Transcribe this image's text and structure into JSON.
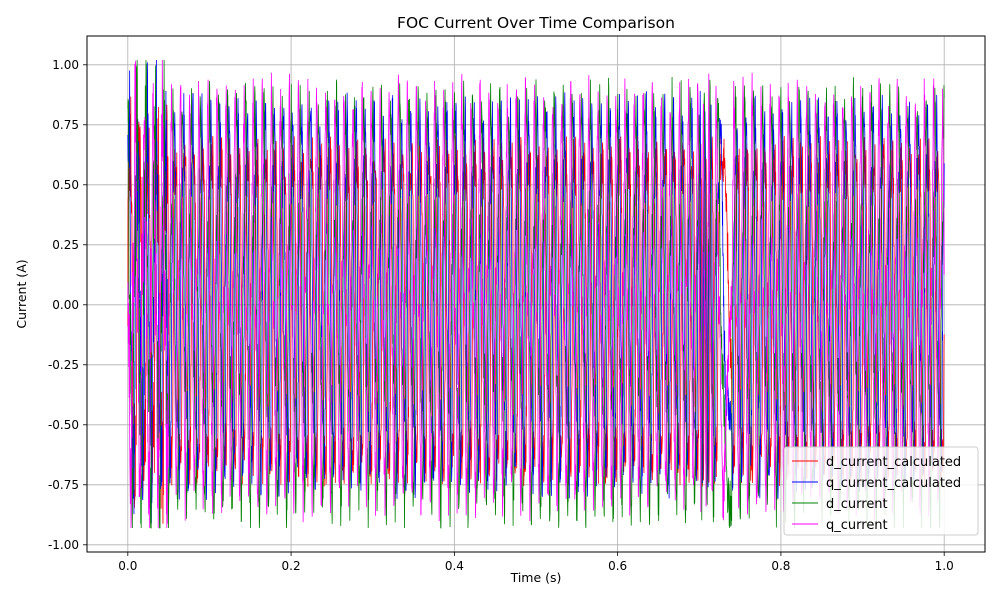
{
  "chart_data": {
    "type": "line",
    "title": "FOC Current Over Time Comparison",
    "xlabel": "Time (s)",
    "ylabel": "Current (A)",
    "xlim": [
      -0.05,
      1.05
    ],
    "ylim": [
      -1.03,
      1.12
    ],
    "xticks": [
      "0.0",
      "0.2",
      "0.4",
      "0.6",
      "0.8",
      "1.0"
    ],
    "xtick_values": [
      0.0,
      0.2,
      0.4,
      0.6,
      0.8,
      1.0
    ],
    "yticks": [
      "-1.00",
      "-0.75",
      "-0.50",
      "-0.25",
      "0.00",
      "0.25",
      "0.50",
      "0.75",
      "1.00"
    ],
    "ytick_values": [
      -1.0,
      -0.75,
      -0.5,
      -0.25,
      0.0,
      0.25,
      0.5,
      0.75,
      1.0
    ],
    "grid": true,
    "legend_position": "bottom-right",
    "series": [
      {
        "name": "d_current_calculated",
        "color": "#ff0000",
        "x_range": [
          0,
          1
        ],
        "peak": 0.85,
        "trough": -0.9,
        "cycles": 90
      },
      {
        "name": "q_current_calculated",
        "color": "#0000ff",
        "x_range": [
          0,
          1
        ],
        "peak": 0.9,
        "trough": -0.82,
        "cycles": 90
      },
      {
        "name": "d_current",
        "color": "#008000",
        "x_range": [
          0,
          1
        ],
        "peak": 0.88,
        "trough": -0.88,
        "cycles": 90
      },
      {
        "name": "q_current",
        "color": "#ff00ff",
        "x_range": [
          0,
          1
        ],
        "peak": 0.86,
        "trough": -0.8,
        "cycles": 90
      }
    ]
  }
}
